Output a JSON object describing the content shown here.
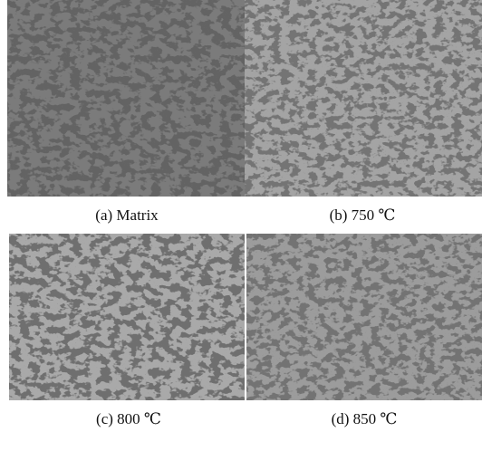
{
  "panels": [
    {
      "caption": "(a) Matrix"
    },
    {
      "caption": "(b) 750 ℃"
    },
    {
      "caption": "(c) 800 ℃"
    },
    {
      "caption": "(d) 850 ℃"
    }
  ]
}
